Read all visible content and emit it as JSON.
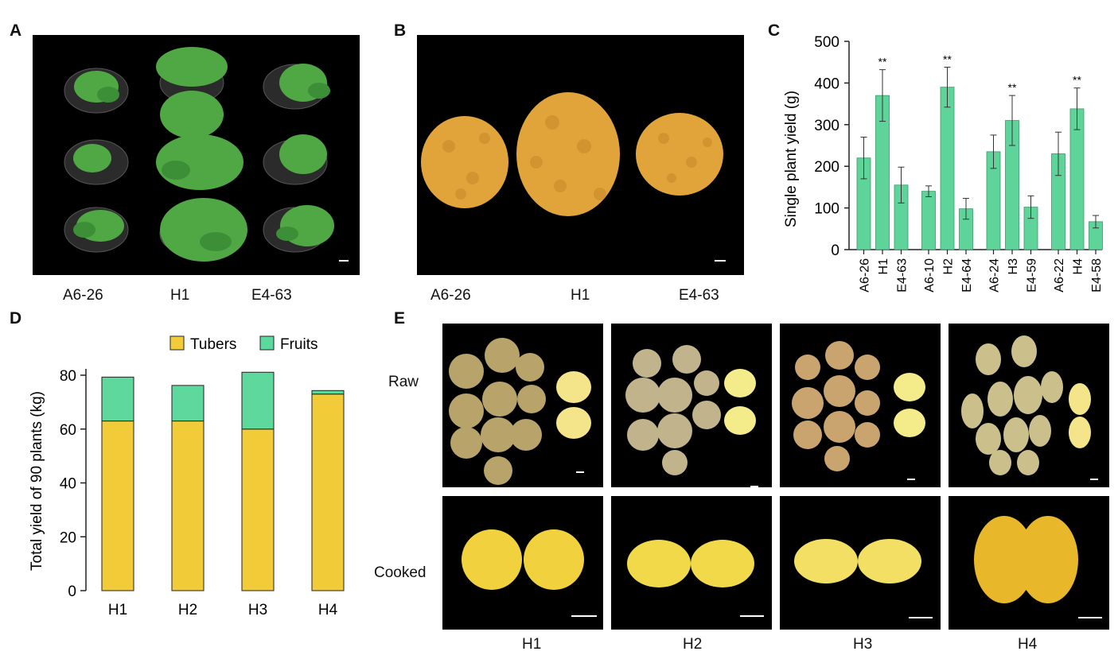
{
  "panels": {
    "A": {
      "letter": "A",
      "labels": [
        "A6-26",
        "H1",
        "E4-63"
      ]
    },
    "B": {
      "letter": "B",
      "labels": [
        "A6-26",
        "H1",
        "E4-63"
      ]
    },
    "C": {
      "letter": "C"
    },
    "D": {
      "letter": "D"
    },
    "E": {
      "letter": "E",
      "row_labels": [
        "Raw",
        "Cooked"
      ],
      "col_labels": [
        "H1",
        "H2",
        "H3",
        "H4"
      ]
    }
  },
  "chart_data": [
    {
      "id": "C",
      "type": "bar",
      "ylabel": "Single plant yield (g)",
      "ylim": [
        0,
        500
      ],
      "yticks": [
        0,
        100,
        200,
        300,
        400,
        500
      ],
      "color": "#5fd49a",
      "groups": [
        {
          "categories": [
            "A6-26",
            "H1",
            "E4-63"
          ],
          "values": [
            220,
            370,
            155
          ],
          "errors": [
            50,
            62,
            43
          ],
          "marks": [
            "",
            "**",
            ""
          ]
        },
        {
          "categories": [
            "A6-10",
            "H2",
            "E4-64"
          ],
          "values": [
            140,
            390,
            98
          ],
          "errors": [
            13,
            48,
            25
          ],
          "marks": [
            "",
            "**",
            ""
          ]
        },
        {
          "categories": [
            "A6-24",
            "H3",
            "E4-59"
          ],
          "values": [
            235,
            310,
            102
          ],
          "errors": [
            40,
            60,
            27
          ],
          "marks": [
            "",
            "**",
            ""
          ]
        },
        {
          "categories": [
            "A6-22",
            "H4",
            "E4-58"
          ],
          "values": [
            230,
            338,
            67
          ],
          "errors": [
            52,
            50,
            15
          ],
          "marks": [
            "",
            "**",
            ""
          ]
        }
      ]
    },
    {
      "id": "D",
      "type": "bar",
      "stacked": true,
      "ylabel": "Total yield of 90 plants (kg)",
      "ylim": [
        0,
        80
      ],
      "yticks": [
        0,
        20,
        40,
        60,
        80
      ],
      "categories": [
        "H1",
        "H2",
        "H3",
        "H4"
      ],
      "series": [
        {
          "name": "Tubers",
          "color": "#f2cb38",
          "values": [
            63,
            63,
            60,
            73
          ]
        },
        {
          "name": "Fruits",
          "color": "#5fd89e",
          "values": [
            16.3,
            13.2,
            21.1,
            1.3
          ]
        }
      ],
      "legend": "top"
    }
  ]
}
